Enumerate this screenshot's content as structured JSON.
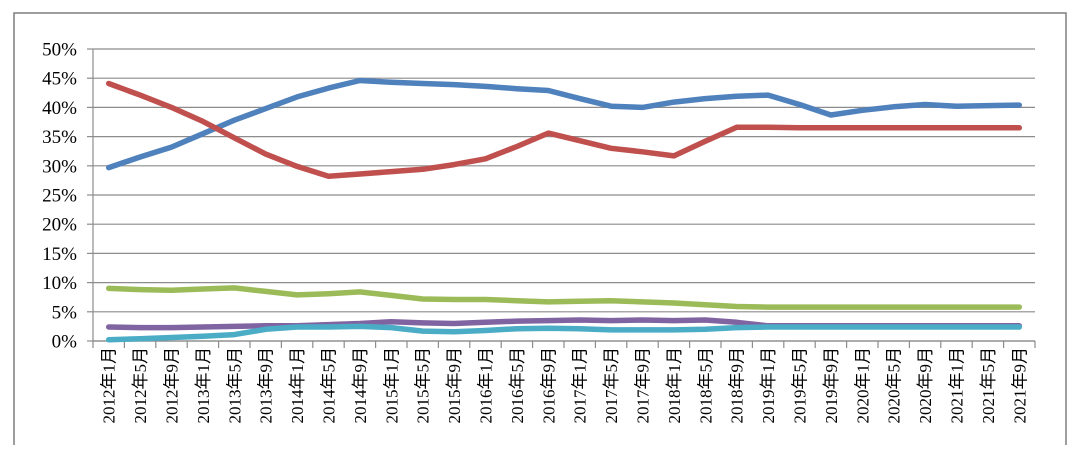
{
  "chart_data": {
    "type": "line",
    "title": "",
    "xlabel": "",
    "ylabel": "",
    "ylim": [
      0,
      50
    ],
    "y_tick_labels": [
      "0%",
      "5%",
      "10%",
      "15%",
      "20%",
      "25%",
      "30%",
      "35%",
      "40%",
      "45%",
      "50%"
    ],
    "categories": [
      "2012年1月",
      "2012年5月",
      "2012年9月",
      "2013年1月",
      "2013年5月",
      "2013年9月",
      "2014年1月",
      "2014年5月",
      "2014年9月",
      "2015年1月",
      "2015年5月",
      "2015年9月",
      "2016年1月",
      "2016年5月",
      "2016年9月",
      "2017年1月",
      "2017年5月",
      "2017年9月",
      "2018年1月",
      "2018年5月",
      "2018年9月",
      "2019年1月",
      "2019年5月",
      "2019年9月",
      "2020年1月",
      "2020年5月",
      "2020年9月",
      "2021年1月",
      "2021年5月",
      "2021年9月"
    ],
    "grid": true,
    "legend": "none",
    "series": [
      {
        "color": "#4F81BD",
        "values": [
          29.7,
          31.5,
          33.2,
          35.5,
          37.8,
          39.8,
          41.8,
          43.3,
          44.6,
          44.3,
          44.1,
          43.9,
          43.6,
          43.2,
          42.9,
          41.5,
          40.2,
          40.0,
          40.9,
          41.5,
          41.9,
          42.1,
          40.5,
          38.7,
          39.5,
          40.1,
          40.5,
          40.2,
          40.3,
          40.4
        ]
      },
      {
        "color": "#C0504D",
        "values": [
          44.1,
          42.1,
          40.0,
          37.6,
          34.8,
          32.0,
          29.9,
          28.2,
          28.6,
          29.0,
          29.4,
          30.2,
          31.2,
          33.3,
          35.6,
          34.3,
          33.0,
          32.4,
          31.7,
          34.2,
          36.6,
          36.6,
          36.5,
          36.5,
          36.5,
          36.5,
          36.5,
          36.5,
          36.5,
          36.5
        ]
      },
      {
        "color": "#9BBB59",
        "values": [
          9.0,
          8.8,
          8.7,
          8.9,
          9.1,
          8.5,
          7.9,
          8.1,
          8.4,
          7.8,
          7.2,
          7.1,
          7.1,
          6.9,
          6.7,
          6.8,
          6.9,
          6.7,
          6.5,
          6.2,
          5.9,
          5.8,
          5.8,
          5.8,
          5.8,
          5.8,
          5.8,
          5.8,
          5.8,
          5.8
        ]
      },
      {
        "color": "#8064A2",
        "values": [
          2.4,
          2.3,
          2.3,
          2.4,
          2.5,
          2.6,
          2.6,
          2.8,
          3.0,
          3.3,
          3.1,
          3.0,
          3.2,
          3.4,
          3.5,
          3.6,
          3.5,
          3.6,
          3.5,
          3.6,
          3.2,
          2.6,
          2.6,
          2.6,
          2.6,
          2.6,
          2.6,
          2.6,
          2.6,
          2.6
        ]
      },
      {
        "color": "#4BACC6",
        "values": [
          0.2,
          0.4,
          0.6,
          0.8,
          1.1,
          2.0,
          2.4,
          2.4,
          2.5,
          2.3,
          1.7,
          1.6,
          1.8,
          2.1,
          2.2,
          2.1,
          1.9,
          1.9,
          1.9,
          2.0,
          2.3,
          2.4,
          2.4,
          2.4,
          2.4,
          2.4,
          2.4,
          2.4,
          2.4,
          2.4
        ]
      }
    ]
  }
}
